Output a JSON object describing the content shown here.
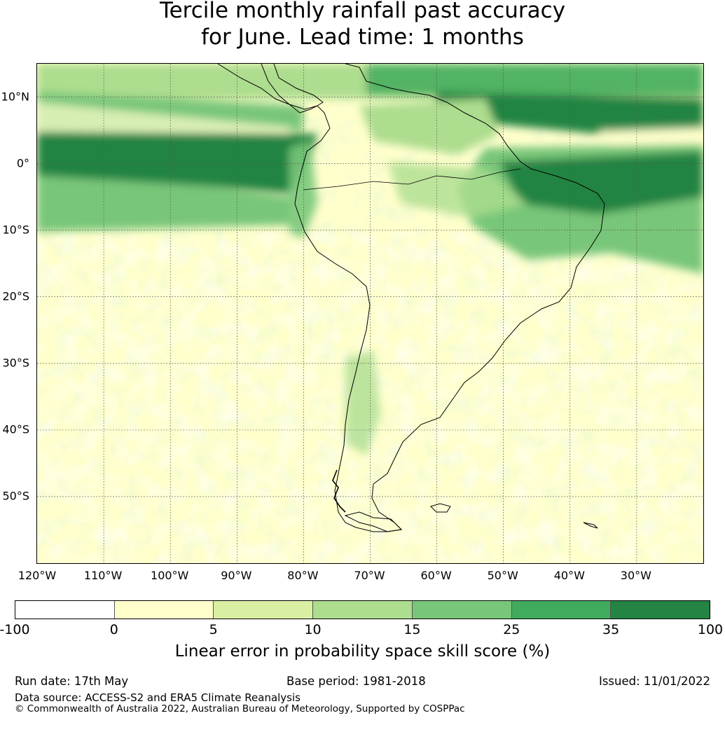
{
  "title": {
    "line1": "Tercile monthly rainfall past accuracy",
    "line2": "for June. Lead time: 1 months"
  },
  "map": {
    "lat_labels": [
      "10°N",
      "0°",
      "10°S",
      "20°S",
      "30°S",
      "40°S",
      "50°S"
    ],
    "lon_labels": [
      "120°W",
      "110°W",
      "100°W",
      "90°W",
      "80°W",
      "70°W",
      "60°W",
      "50°W",
      "40°W",
      "30°W"
    ],
    "lat_values": [
      10,
      0,
      -10,
      -20,
      -30,
      -40,
      -50
    ],
    "lon_values": [
      -120,
      -110,
      -100,
      -90,
      -80,
      -70,
      -60,
      -50,
      -40,
      -30
    ],
    "extent": {
      "lon_min": -120,
      "lon_max": -20,
      "lat_min": -60,
      "lat_max": 15
    },
    "coastline_color": "#000000",
    "gridline_color": "#555555"
  },
  "colorbar": {
    "ticks": [
      "-100",
      "0",
      "5",
      "10",
      "15",
      "25",
      "35",
      "100"
    ],
    "colors": [
      "#ffffff",
      "#ffffcc",
      "#d9f0a3",
      "#addd8e",
      "#78c679",
      "#41ab5d",
      "#238443"
    ],
    "label": "Linear error in probability space skill score (%)"
  },
  "footer": {
    "run_date": "Run date: 17th May",
    "base_period": "Base period: 1981-2018",
    "issued": "Issued: 11/01/2022",
    "data_source": "Data source: ACCESS-S2 and ERA5 Climate Reanalysis",
    "copyright": "© Commonwealth of Australia 2022, Australian Bureau of Meteorology, Supported by COSPPac"
  }
}
